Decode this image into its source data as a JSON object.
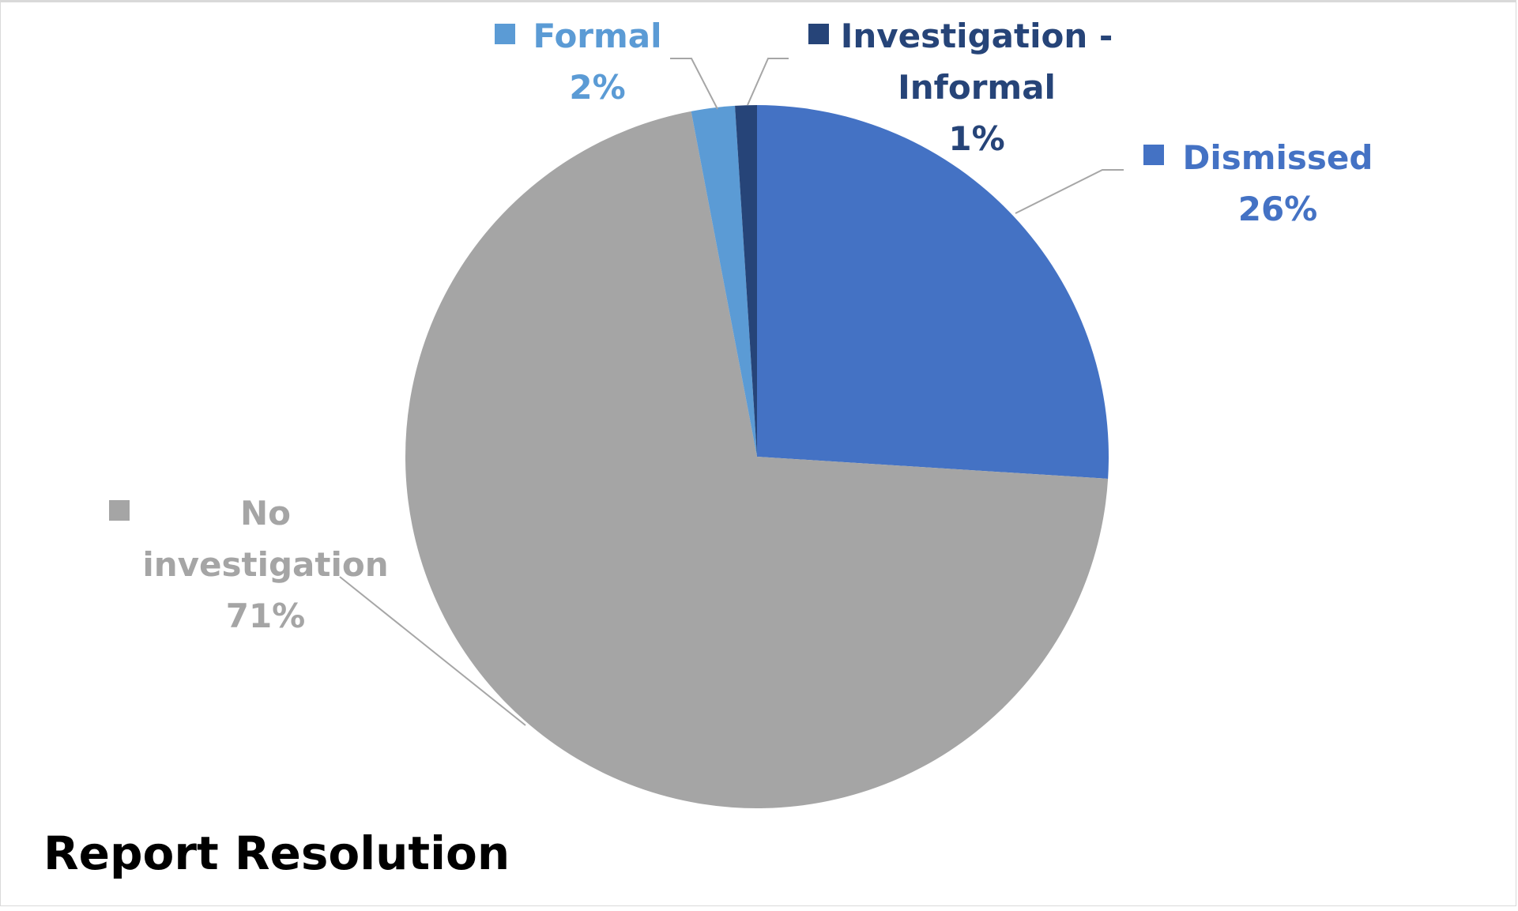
{
  "chart_data": {
    "type": "pie",
    "title": "Report Resolution",
    "slices": [
      {
        "label": "Dismissed",
        "label_lines": [
          "Dismissed"
        ],
        "value": 26,
        "percent_label": "26%",
        "color": "#4472C4"
      },
      {
        "label": "No investigation",
        "label_lines": [
          "No",
          "investigation"
        ],
        "value": 71,
        "percent_label": "71%",
        "color": "#A5A5A5"
      },
      {
        "label": "Formal",
        "label_lines": [
          "Formal"
        ],
        "value": 2,
        "percent_label": "2%",
        "color": "#5B9BD5"
      },
      {
        "label": "Investigation - Informal",
        "label_lines": [
          "Investigation -",
          "Informal"
        ],
        "value": 1,
        "percent_label": "1%",
        "color": "#264478"
      }
    ],
    "legend": "none",
    "label_color": {
      "Dismissed": "#4472C4",
      "No investigation": "#A5A5A5",
      "Formal": "#5B9BD5",
      "Investigation - Informal": "#264478"
    },
    "leader_line_color": "#A6A6A6"
  }
}
